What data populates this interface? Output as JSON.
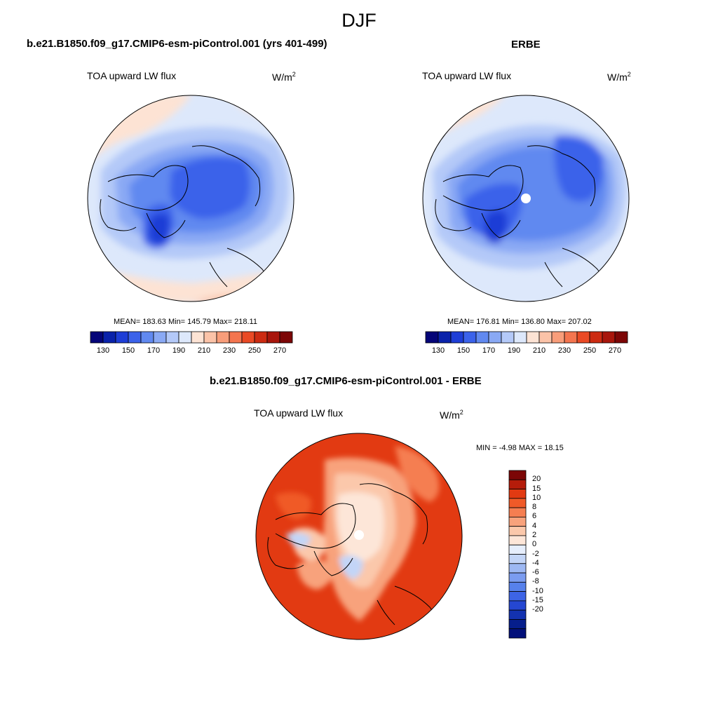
{
  "header": {
    "season": "DJF"
  },
  "panels": [
    {
      "id": "model",
      "title": "b.e21.B1850.f09_g17.CMIP6-esm-piControl.001 (yrs 401-499)",
      "variable": "TOA upward LW flux",
      "units_base": "W/m",
      "units_exp": "2",
      "stats": "MEAN= 183.63  Min= 145.79  Max= 218.11"
    },
    {
      "id": "obs",
      "title": "ERBE",
      "variable": "TOA upward LW flux",
      "units_base": "W/m",
      "units_exp": "2",
      "stats": "MEAN= 176.81  Min= 136.80  Max= 207.02"
    },
    {
      "id": "diff",
      "title": "b.e21.B1850.f09_g17.CMIP6-esm-piControl.001 - ERBE",
      "variable": "TOA upward LW flux",
      "units_base": "W/m",
      "units_exp": "2",
      "stats": "MIN =  -4.98 MAX =  18.15"
    }
  ],
  "colorbar_fields": {
    "colors": [
      "#050578",
      "#0a22aa",
      "#1e3ed6",
      "#3b62ea",
      "#6189f0",
      "#8aa9f4",
      "#b4c9f8",
      "#dde8fb",
      "#fde3d4",
      "#fbc3a8",
      "#f89d7a",
      "#f4754f",
      "#ea4a25",
      "#cc2b12",
      "#a8160c",
      "#7c0606"
    ],
    "labels": [
      "130",
      "150",
      "170",
      "190",
      "210",
      "230",
      "250",
      "270"
    ]
  },
  "colorbar_diff": {
    "colors": [
      "#7c0606",
      "#b51c0a",
      "#e23a12",
      "#f05a28",
      "#f57e51",
      "#f8a27c",
      "#fbc8ab",
      "#fde6d8",
      "#e6eefc",
      "#c3d5f7",
      "#9db8f3",
      "#7b9cf0",
      "#5781ec",
      "#3d64e6",
      "#2547d2",
      "#1332b0",
      "#061e8c",
      "#02107a"
    ],
    "labels": [
      "20",
      "15",
      "10",
      "8",
      "6",
      "4",
      "2",
      "0",
      "-2",
      "-4",
      "-6",
      "-8",
      "-10",
      "-15",
      "-20"
    ]
  }
}
